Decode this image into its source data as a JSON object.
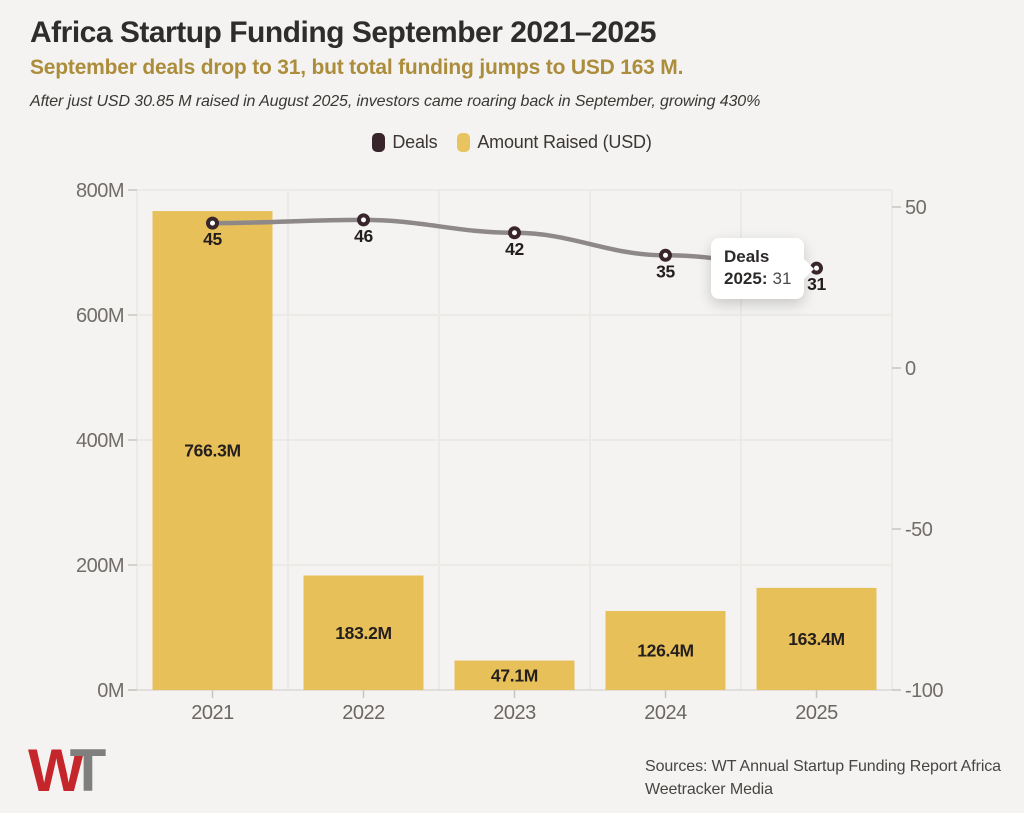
{
  "header": {
    "title": "Africa Startup Funding September 2021–2025",
    "subtitle": "September deals drop to 31, but total funding jumps to USD 163 M.",
    "note": "After just USD 30.85 M raised in August 2025, investors came roaring back in September, growing 430%"
  },
  "legend": {
    "items": [
      {
        "label": "Deals",
        "color": "#38242b"
      },
      {
        "label": "Amount Raised (USD)",
        "color": "#e9c45e"
      }
    ]
  },
  "chart_data": {
    "type": "combo-bar-line",
    "categories": [
      "2021",
      "2022",
      "2023",
      "2024",
      "2025"
    ],
    "series": [
      {
        "name": "Amount Raised (USD)",
        "type": "bar",
        "axis": "left",
        "values": [
          766.3,
          183.2,
          47.1,
          126.4,
          163.4
        ],
        "labels": [
          "766.3M",
          "183.2M",
          "47.1M",
          "126.4M",
          "163.4M"
        ],
        "color": "#e8c05a",
        "label_color": "#241e1c"
      },
      {
        "name": "Deals",
        "type": "line",
        "axis": "right",
        "values": [
          45,
          46,
          42,
          35,
          31
        ],
        "labels": [
          "45",
          "46",
          "42",
          "35",
          "31"
        ],
        "color": "#8f8889",
        "marker_ring": "#39262c",
        "marker_fill": "#ffffff",
        "label_color": "#231d1f"
      }
    ],
    "left_axis": {
      "min": 0,
      "max": 800,
      "ticks": [
        {
          "label": "800M",
          "v": 800
        },
        {
          "label": "600M",
          "v": 600
        },
        {
          "label": "400M",
          "v": 400
        },
        {
          "label": "200M",
          "v": 200
        },
        {
          "label": "0M",
          "v": 0
        }
      ]
    },
    "right_axis": {
      "min": -100,
      "max": 50,
      "ticks": [
        {
          "label": "50",
          "v": 50
        },
        {
          "label": "0",
          "v": 0
        },
        {
          "label": "-50",
          "v": -50
        },
        {
          "label": "-100",
          "v": -100
        }
      ]
    },
    "grid": true,
    "theme": {
      "grid_color": "#eceae7",
      "axis_line_color": "#dbd8d4",
      "tick_color": "#c8c5c1",
      "axis_text_color": "#716d69",
      "year_text_color": "#6b6762"
    }
  },
  "tooltip": {
    "title": "Deals",
    "year_label": "2025:",
    "value": "31"
  },
  "footer": {
    "logo_w": "W",
    "logo_t": "T",
    "sources_line1": "Sources: WT Annual Startup Funding Report Africa",
    "sources_line2": "Weetracker Media"
  }
}
